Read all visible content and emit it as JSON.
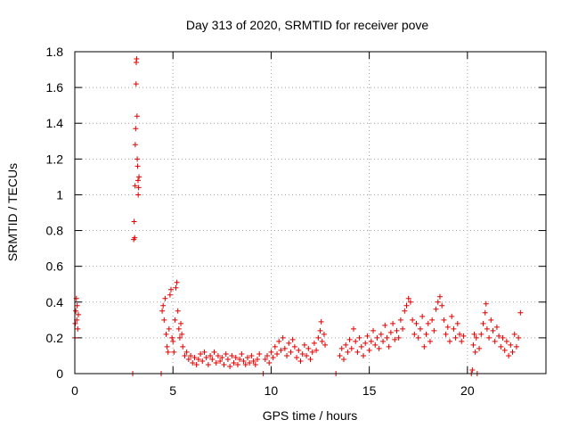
{
  "chart_data": {
    "type": "scatter",
    "title": "Day 313 of 2020, SRMTID for receiver pove",
    "xlabel": "GPS time / hours",
    "ylabel": "SRMTID / TECUs",
    "xlim": [
      0,
      24
    ],
    "ylim": [
      0,
      1.8
    ],
    "xticks": [
      "0",
      "5",
      "10",
      "15",
      "20"
    ],
    "xtick_values": [
      0,
      5,
      10,
      15,
      20
    ],
    "yticks": [
      "0",
      "0.2",
      "0.4",
      "0.6",
      "0.8",
      "1",
      "1.2",
      "1.4",
      "1.6",
      "1.8"
    ],
    "ytick_values": [
      0,
      0.2,
      0.4,
      0.6,
      0.8,
      1.0,
      1.2,
      1.4,
      1.6,
      1.8
    ],
    "grid": true,
    "legend": "none",
    "marker": "plus",
    "color": "#e00000",
    "series": [
      {
        "points": [
          [
            0.0,
            0.2
          ],
          [
            0.02,
            0.28
          ],
          [
            0.05,
            0.35
          ],
          [
            0.08,
            0.42
          ],
          [
            0.1,
            0.3
          ],
          [
            0.12,
            0.38
          ],
          [
            0.15,
            0.25
          ],
          [
            0.18,
            0.33
          ],
          [
            2.95,
            0.0
          ],
          [
            3.0,
            0.75
          ],
          [
            3.02,
            0.85
          ],
          [
            3.05,
            0.76
          ],
          [
            3.07,
            1.05
          ],
          [
            3.08,
            1.28
          ],
          [
            3.1,
            1.37
          ],
          [
            3.12,
            1.62
          ],
          [
            3.13,
            1.74
          ],
          [
            3.15,
            1.76
          ],
          [
            3.17,
            1.44
          ],
          [
            3.18,
            1.2
          ],
          [
            3.2,
            1.16
          ],
          [
            3.22,
            1.08
          ],
          [
            3.23,
            1.0
          ],
          [
            3.25,
            1.04
          ],
          [
            3.27,
            1.1
          ],
          [
            4.4,
            0.0
          ],
          [
            4.45,
            0.35
          ],
          [
            4.5,
            0.38
          ],
          [
            4.55,
            0.3
          ],
          [
            4.6,
            0.42
          ],
          [
            4.65,
            0.22
          ],
          [
            4.7,
            0.15
          ],
          [
            4.75,
            0.12
          ],
          [
            4.8,
            0.25
          ],
          [
            4.85,
            0.44
          ],
          [
            4.9,
            0.47
          ],
          [
            4.95,
            0.2
          ],
          [
            5.0,
            0.18
          ],
          [
            5.05,
            0.12
          ],
          [
            5.1,
            0.3
          ],
          [
            5.15,
            0.48
          ],
          [
            5.2,
            0.51
          ],
          [
            5.25,
            0.35
          ],
          [
            5.3,
            0.25
          ],
          [
            5.35,
            0.2
          ],
          [
            5.4,
            0.28
          ],
          [
            5.45,
            0.22
          ],
          [
            5.5,
            0.15
          ],
          [
            5.6,
            0.1
          ],
          [
            5.7,
            0.12
          ],
          [
            5.8,
            0.08
          ],
          [
            5.9,
            0.1
          ],
          [
            6.0,
            0.06
          ],
          [
            6.1,
            0.09
          ],
          [
            6.2,
            0.05
          ],
          [
            6.3,
            0.08
          ],
          [
            6.4,
            0.11
          ],
          [
            6.5,
            0.07
          ],
          [
            6.6,
            0.12
          ],
          [
            6.7,
            0.09
          ],
          [
            6.8,
            0.05
          ],
          [
            6.9,
            0.1
          ],
          [
            7.0,
            0.08
          ],
          [
            7.1,
            0.12
          ],
          [
            7.2,
            0.06
          ],
          [
            7.3,
            0.1
          ],
          [
            7.4,
            0.07
          ],
          [
            7.5,
            0.09
          ],
          [
            7.6,
            0.05
          ],
          [
            7.7,
            0.11
          ],
          [
            7.8,
            0.08
          ],
          [
            7.9,
            0.04
          ],
          [
            8.0,
            0.1
          ],
          [
            8.1,
            0.06
          ],
          [
            8.2,
            0.09
          ],
          [
            8.3,
            0.05
          ],
          [
            8.4,
            0.08
          ],
          [
            8.5,
            0.11
          ],
          [
            8.6,
            0.07
          ],
          [
            8.7,
            0.05
          ],
          [
            8.8,
            0.09
          ],
          [
            8.9,
            0.06
          ],
          [
            9.0,
            0.1
          ],
          [
            9.1,
            0.07
          ],
          [
            9.2,
            0.05
          ],
          [
            9.3,
            0.08
          ],
          [
            9.4,
            0.11
          ],
          [
            9.6,
            0.0
          ],
          [
            9.7,
            0.08
          ],
          [
            9.8,
            0.1
          ],
          [
            9.9,
            0.06
          ],
          [
            10.0,
            0.12
          ],
          [
            10.1,
            0.09
          ],
          [
            10.2,
            0.15
          ],
          [
            10.3,
            0.11
          ],
          [
            10.4,
            0.18
          ],
          [
            10.5,
            0.13
          ],
          [
            10.6,
            0.2
          ],
          [
            10.7,
            0.14
          ],
          [
            10.8,
            0.1
          ],
          [
            10.9,
            0.17
          ],
          [
            11.0,
            0.12
          ],
          [
            11.1,
            0.19
          ],
          [
            11.2,
            0.15
          ],
          [
            11.3,
            0.09
          ],
          [
            11.4,
            0.13
          ],
          [
            11.5,
            0.07
          ],
          [
            11.6,
            0.11
          ],
          [
            11.7,
            0.16
          ],
          [
            11.8,
            0.1
          ],
          [
            11.9,
            0.14
          ],
          [
            12.0,
            0.08
          ],
          [
            12.1,
            0.12
          ],
          [
            12.2,
            0.17
          ],
          [
            12.3,
            0.13
          ],
          [
            12.4,
            0.2
          ],
          [
            12.5,
            0.24
          ],
          [
            12.55,
            0.29
          ],
          [
            12.6,
            0.18
          ],
          [
            12.7,
            0.22
          ],
          [
            12.75,
            0.16
          ],
          [
            13.3,
            0.0
          ],
          [
            13.5,
            0.1
          ],
          [
            13.6,
            0.14
          ],
          [
            13.7,
            0.08
          ],
          [
            13.8,
            0.16
          ],
          [
            13.9,
            0.12
          ],
          [
            14.0,
            0.19
          ],
          [
            14.1,
            0.14
          ],
          [
            14.2,
            0.25
          ],
          [
            14.3,
            0.18
          ],
          [
            14.4,
            0.12
          ],
          [
            14.5,
            0.2
          ],
          [
            14.6,
            0.15
          ],
          [
            14.7,
            0.1
          ],
          [
            14.8,
            0.17
          ],
          [
            14.9,
            0.21
          ],
          [
            15.0,
            0.13
          ],
          [
            15.1,
            0.18
          ],
          [
            15.2,
            0.24
          ],
          [
            15.3,
            0.16
          ],
          [
            15.4,
            0.2
          ],
          [
            15.5,
            0.14
          ],
          [
            15.6,
            0.22
          ],
          [
            15.7,
            0.18
          ],
          [
            15.8,
            0.27
          ],
          [
            15.9,
            0.2
          ],
          [
            16.0,
            0.15
          ],
          [
            16.1,
            0.23
          ],
          [
            16.2,
            0.28
          ],
          [
            16.3,
            0.19
          ],
          [
            16.4,
            0.24
          ],
          [
            16.5,
            0.2
          ],
          [
            16.6,
            0.3
          ],
          [
            16.7,
            0.25
          ],
          [
            16.8,
            0.35
          ],
          [
            16.9,
            0.38
          ],
          [
            17.0,
            0.42
          ],
          [
            17.1,
            0.4
          ],
          [
            17.2,
            0.3
          ],
          [
            17.3,
            0.22
          ],
          [
            17.4,
            0.28
          ],
          [
            17.5,
            0.2
          ],
          [
            17.6,
            0.25
          ],
          [
            17.7,
            0.32
          ],
          [
            17.8,
            0.15
          ],
          [
            17.9,
            0.22
          ],
          [
            18.0,
            0.28
          ],
          [
            18.1,
            0.18
          ],
          [
            18.2,
            0.3
          ],
          [
            18.3,
            0.24
          ],
          [
            18.4,
            0.36
          ],
          [
            18.5,
            0.4
          ],
          [
            18.6,
            0.43
          ],
          [
            18.7,
            0.38
          ],
          [
            18.8,
            0.3
          ],
          [
            18.9,
            0.22
          ],
          [
            19.0,
            0.26
          ],
          [
            19.1,
            0.18
          ],
          [
            19.2,
            0.32
          ],
          [
            19.3,
            0.25
          ],
          [
            19.4,
            0.2
          ],
          [
            19.5,
            0.28
          ],
          [
            19.6,
            0.22
          ],
          [
            19.7,
            0.18
          ],
          [
            19.8,
            0.21
          ],
          [
            20.2,
            0.0
          ],
          [
            20.25,
            0.02
          ],
          [
            20.3,
            0.16
          ],
          [
            20.35,
            0.22
          ],
          [
            20.4,
            0.12
          ],
          [
            20.45,
            0.2
          ],
          [
            20.5,
            0.0
          ],
          [
            20.6,
            0.14
          ],
          [
            20.7,
            0.22
          ],
          [
            20.8,
            0.28
          ],
          [
            20.9,
            0.34
          ],
          [
            20.95,
            0.39
          ],
          [
            21.0,
            0.25
          ],
          [
            21.1,
            0.2
          ],
          [
            21.2,
            0.3
          ],
          [
            21.3,
            0.24
          ],
          [
            21.4,
            0.18
          ],
          [
            21.5,
            0.26
          ],
          [
            21.6,
            0.21
          ],
          [
            21.7,
            0.15
          ],
          [
            21.8,
            0.2
          ],
          [
            21.9,
            0.13
          ],
          [
            22.0,
            0.18
          ],
          [
            22.1,
            0.1
          ],
          [
            22.2,
            0.16
          ],
          [
            22.3,
            0.12
          ],
          [
            22.4,
            0.22
          ],
          [
            22.5,
            0.15
          ],
          [
            22.6,
            0.2
          ],
          [
            22.7,
            0.34
          ]
        ]
      }
    ]
  }
}
